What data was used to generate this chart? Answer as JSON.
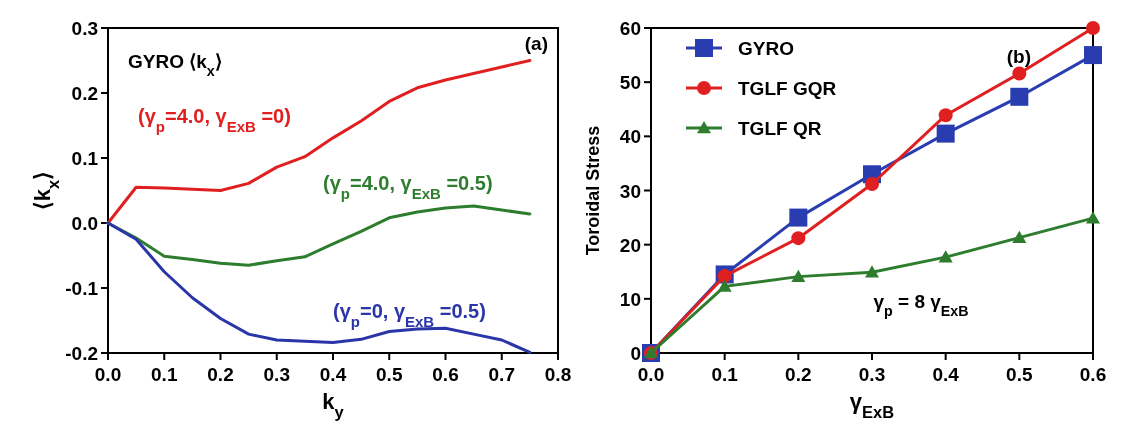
{
  "chart_data": [
    {
      "type": "line",
      "xlabel": "k$_{y}$",
      "ylabel": "⟨k$_{x}$⟩",
      "annotations": [
        "GYRO  ⟨k$_{x}$⟩",
        "(a)"
      ],
      "x": [
        0,
        0.05,
        0.1,
        0.15,
        0.2,
        0.25,
        0.3,
        0.35,
        0.4,
        0.45,
        0.5,
        0.55,
        0.6,
        0.65,
        0.7,
        0.75
      ],
      "series": [
        {
          "name": "(γ$_{p}$=4.0, γ$_{ExB}$ =0)",
          "color": "#e02020",
          "values": [
            0,
            0.055,
            0.054,
            0.052,
            0.05,
            0.061,
            0.086,
            0.102,
            0.131,
            0.157,
            0.187,
            0.208,
            0.22,
            0.23,
            0.24,
            0.25
          ]
        },
        {
          "name": "(γ$_{p}$=4.0, γ$_{ExB}$ =0.5)",
          "color": "#2e7d2e",
          "values": [
            0,
            -0.023,
            -0.051,
            -0.056,
            -0.062,
            -0.065,
            -0.058,
            -0.052,
            -0.032,
            -0.013,
            0.008,
            0.017,
            0.023,
            0.026,
            0.02,
            0.014
          ]
        },
        {
          "name": "(γ$_{p}$=0, γ$_{ExB}$ =0.5)",
          "color": "#2a35a8",
          "values": [
            0,
            -0.025,
            -0.075,
            -0.115,
            -0.147,
            -0.171,
            -0.18,
            -0.182,
            -0.184,
            -0.179,
            -0.167,
            -0.163,
            -0.162,
            -0.171,
            -0.18,
            -0.199
          ]
        }
      ],
      "xlim": [
        0,
        0.8
      ],
      "xticks": [
        {
          "value": 0,
          "label": "0.0"
        },
        0.1,
        0.2,
        0.3,
        0.4,
        0.5,
        0.6,
        0.7,
        0.8
      ],
      "ylim": [
        -0.2,
        0.3
      ],
      "yticks": [
        -0.2,
        -0.1,
        {
          "value": 0,
          "label": "0.0"
        },
        0.1,
        0.2,
        0.3
      ],
      "legend": false,
      "marker": "none"
    },
    {
      "type": "line",
      "xlabel": "γ$_{ExB}$",
      "ylabel": "Toroidal Stress",
      "annotations": [
        "(b)",
        "γ$_{p}$ = 8 γ$_{ExB}$"
      ],
      "x": [
        0,
        0.1,
        0.2,
        0.3,
        0.4,
        0.5,
        0.6
      ],
      "series": [
        {
          "name": "GYRO",
          "color": "#2a3db0",
          "marker": "square",
          "values": [
            0,
            14.5,
            25,
            33,
            40.5,
            47.3,
            55
          ]
        },
        {
          "name": "TGLF GQR",
          "color": "#e02020",
          "marker": "circle",
          "values": [
            0,
            14.2,
            21.2,
            31.2,
            43.9,
            51.6,
            60
          ]
        },
        {
          "name": "TGLF QR",
          "color": "#2e7d2e",
          "marker": "triangle",
          "values": [
            0,
            12.3,
            14.1,
            14.9,
            17.7,
            21.3,
            24.9
          ]
        }
      ],
      "xlim": [
        0,
        0.6
      ],
      "xticks": [
        {
          "value": 0,
          "label": "0.0"
        },
        0.1,
        0.2,
        0.3,
        0.4,
        0.5,
        0.6
      ],
      "ylim": [
        0,
        60
      ],
      "yticks": [
        0,
        10,
        20,
        30,
        40,
        50,
        60
      ],
      "legend": "top left"
    }
  ]
}
